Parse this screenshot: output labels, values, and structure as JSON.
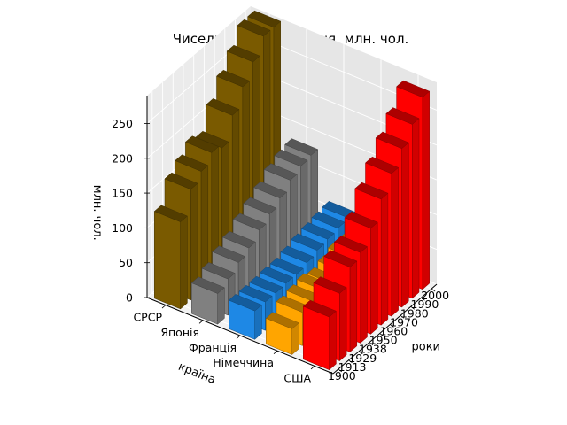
{
  "chart_data": {
    "type": "bar",
    "projection": "3d",
    "title": "Чисельність населення, млн. чол.",
    "xlabel": "країна",
    "ylabel": "роки",
    "zlabel": "млн. чол.",
    "countries": [
      "СРСР",
      "Японія",
      "Франція",
      "Німеччина",
      "США"
    ],
    "years": [
      "1900",
      "1913",
      "1929",
      "1938",
      "1950",
      "1960",
      "1970",
      "1980",
      "1990",
      "2000"
    ],
    "zlim": [
      0,
      290
    ],
    "zticks": [
      0,
      50,
      100,
      150,
      200,
      250
    ],
    "grid": true,
    "series": [
      {
        "name": "СРСР",
        "color": "#7a5a00",
        "values": [
          125,
          159,
          172,
          186,
          180,
          214,
          242,
          265,
          289,
          289
        ]
      },
      {
        "name": "Японія",
        "color": "#808080",
        "values": [
          44,
          52,
          63,
          71,
          84,
          94,
          104,
          117,
          124,
          127
        ]
      },
      {
        "name": "Франція",
        "color": "#1e88e5",
        "values": [
          41,
          41,
          41,
          42,
          42,
          46,
          51,
          54,
          57,
          59
        ]
      },
      {
        "name": "Німеччина",
        "color": "#ffa500",
        "values": [
          37,
          48,
          51,
          54,
          50,
          55,
          61,
          61,
          64,
          82
        ]
      },
      {
        "name": "США",
        "color": "#ff0000",
        "values": [
          76,
          97,
          122,
          130,
          152,
          181,
          205,
          228,
          250,
          276
        ]
      }
    ]
  }
}
